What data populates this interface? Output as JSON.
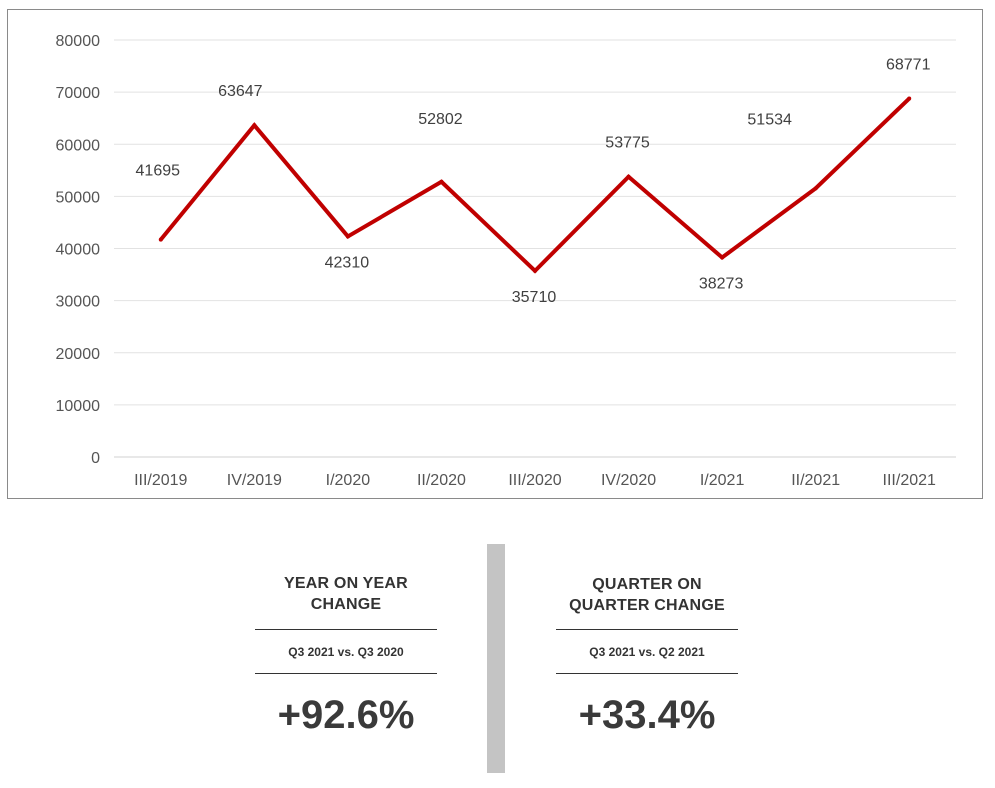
{
  "chart_data": {
    "type": "line",
    "categories": [
      "III/2019",
      "IV/2019",
      "I/2020",
      "II/2020",
      "III/2020",
      "IV/2020",
      "I/2021",
      "II/2021",
      "III/2021"
    ],
    "series": [
      {
        "values": [
          41695,
          63647,
          42310,
          52802,
          35710,
          53775,
          38273,
          51534,
          68771
        ]
      }
    ],
    "ylim": [
      0,
      80000
    ],
    "yticks": [
      0,
      10000,
      20000,
      30000,
      40000,
      50000,
      60000,
      70000,
      80000
    ],
    "grid": true,
    "line_color": "#c00000"
  },
  "stats": {
    "yoy": {
      "heading_line1": "YEAR ON YEAR",
      "heading_line2": "CHANGE",
      "comparison": "Q3 2021 vs. Q3 2020",
      "value": "+92.6%"
    },
    "qoq": {
      "heading_line1": "QUARTER ON",
      "heading_line2": "QUARTER CHANGE",
      "comparison": "Q3 2021 vs. Q2 2021",
      "value": "+33.4%"
    }
  }
}
